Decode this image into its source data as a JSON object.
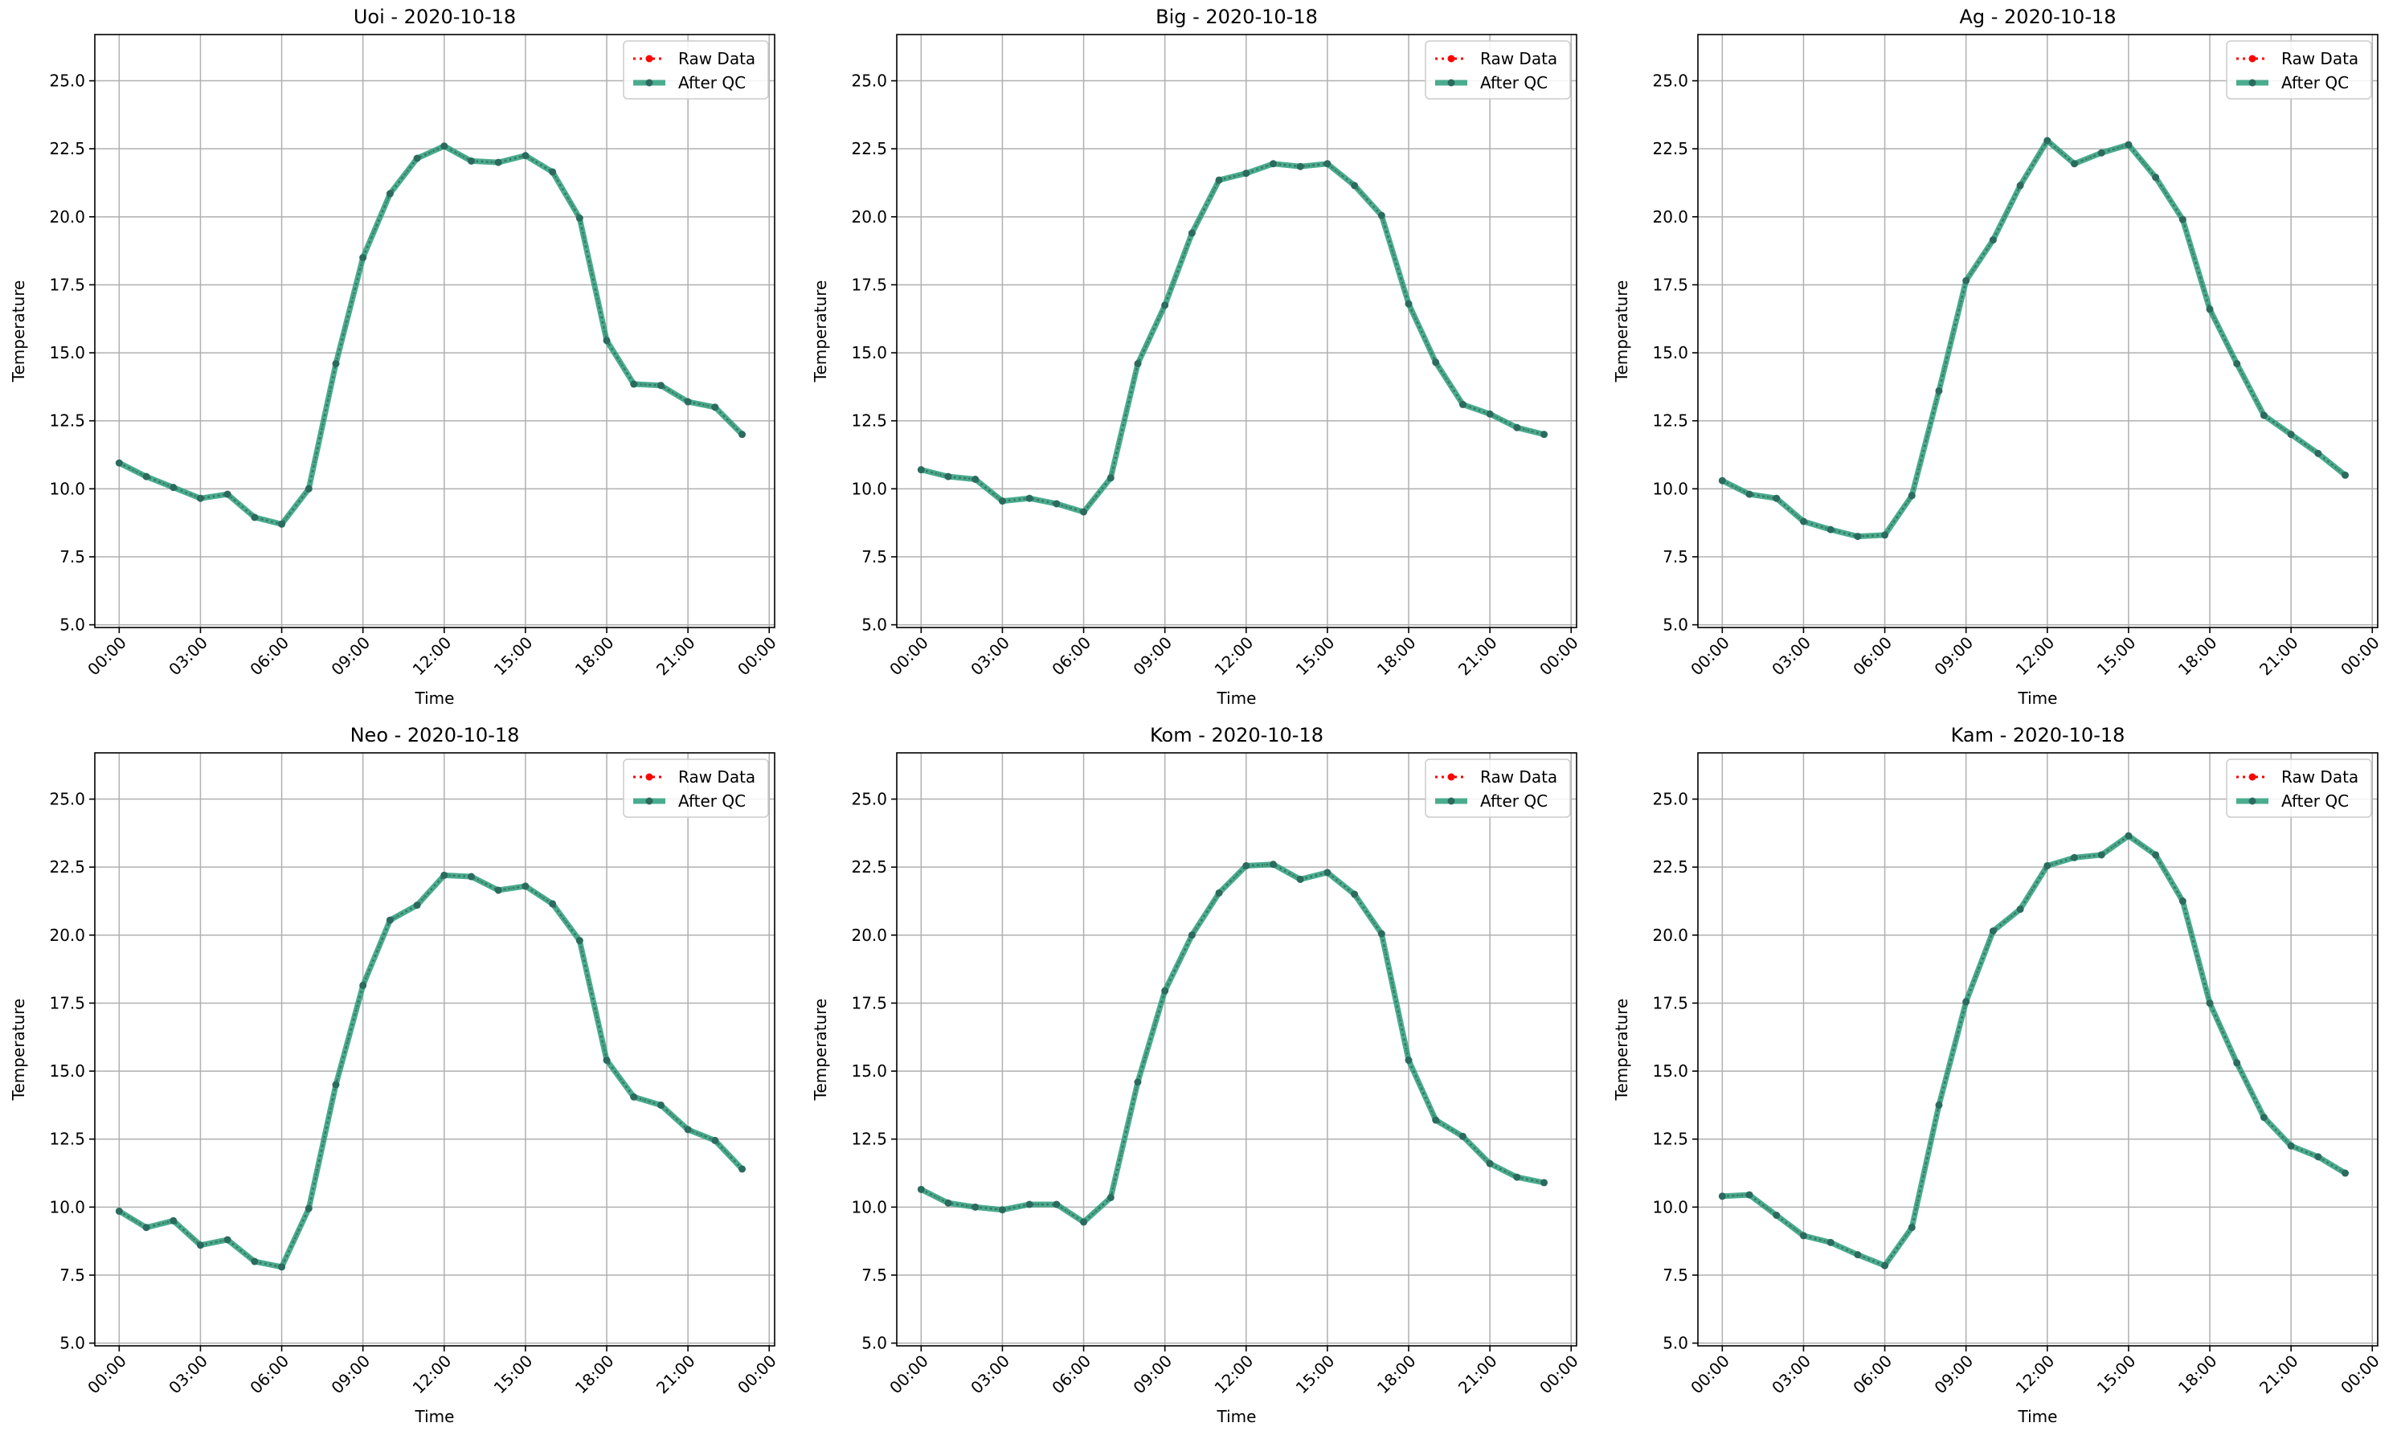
{
  "colors": {
    "raw": "#ff0000",
    "qc": "#2a9d7a",
    "qc_marker": "#2b6b5e",
    "grid": "#b0b0b0",
    "axis": "#000000"
  },
  "chart_data": [
    {
      "type": "line",
      "title": "Uoi - 2020-10-18",
      "xlabel": "Time",
      "ylabel": "Temperature",
      "ylim": [
        4.9,
        26.7
      ],
      "xlim": [
        -0.9,
        24.2
      ],
      "yticks": [
        "5.0",
        "7.5",
        "10.0",
        "12.5",
        "15.0",
        "17.5",
        "20.0",
        "22.5",
        "25.0"
      ],
      "xticks": [
        "00:00",
        "03:00",
        "06:00",
        "09:00",
        "12:00",
        "15:00",
        "18:00",
        "21:00",
        "00:00"
      ],
      "grid": true,
      "legend": "top-right",
      "legend_entries": [
        "Raw Data",
        "After QC"
      ],
      "series": [
        {
          "name": "Raw Data",
          "values": [
            10.95,
            10.45,
            10.05,
            9.65,
            9.8,
            8.95,
            8.7,
            10.0,
            14.6,
            18.5,
            20.85,
            22.15,
            22.6,
            22.05,
            22.0,
            22.25,
            21.65,
            19.95,
            15.45,
            13.85,
            13.8,
            13.2,
            13.0,
            12.0
          ]
        },
        {
          "name": "After QC",
          "values": [
            10.95,
            10.45,
            10.05,
            9.65,
            9.8,
            8.95,
            8.7,
            10.0,
            14.6,
            18.5,
            20.85,
            22.15,
            22.6,
            22.05,
            22.0,
            22.25,
            21.65,
            19.95,
            15.45,
            13.85,
            13.8,
            13.2,
            13.0,
            12.0
          ]
        }
      ]
    },
    {
      "type": "line",
      "title": "Big - 2020-10-18",
      "xlabel": "Time",
      "ylabel": "Temperature",
      "ylim": [
        4.9,
        26.7
      ],
      "xlim": [
        -0.9,
        24.2
      ],
      "yticks": [
        "5.0",
        "7.5",
        "10.0",
        "12.5",
        "15.0",
        "17.5",
        "20.0",
        "22.5",
        "25.0"
      ],
      "xticks": [
        "00:00",
        "03:00",
        "06:00",
        "09:00",
        "12:00",
        "15:00",
        "18:00",
        "21:00",
        "00:00"
      ],
      "grid": true,
      "legend": "top-right",
      "legend_entries": [
        "Raw Data",
        "After QC"
      ],
      "series": [
        {
          "name": "Raw Data",
          "values": [
            10.7,
            10.45,
            10.35,
            9.55,
            9.65,
            9.45,
            9.15,
            10.4,
            14.6,
            16.75,
            19.4,
            21.35,
            21.6,
            21.95,
            21.85,
            21.95,
            21.15,
            20.05,
            16.8,
            14.65,
            13.1,
            12.75,
            12.25,
            12.0
          ]
        },
        {
          "name": "After QC",
          "values": [
            10.7,
            10.45,
            10.35,
            9.55,
            9.65,
            9.45,
            9.15,
            10.4,
            14.6,
            16.75,
            19.4,
            21.35,
            21.6,
            21.95,
            21.85,
            21.95,
            21.15,
            20.05,
            16.8,
            14.65,
            13.1,
            12.75,
            12.25,
            12.0
          ]
        }
      ]
    },
    {
      "type": "line",
      "title": "Ag - 2020-10-18",
      "xlabel": "Time",
      "ylabel": "Temperature",
      "ylim": [
        4.9,
        26.7
      ],
      "xlim": [
        -0.9,
        24.2
      ],
      "yticks": [
        "5.0",
        "7.5",
        "10.0",
        "12.5",
        "15.0",
        "17.5",
        "20.0",
        "22.5",
        "25.0"
      ],
      "xticks": [
        "00:00",
        "03:00",
        "06:00",
        "09:00",
        "12:00",
        "15:00",
        "18:00",
        "21:00",
        "00:00"
      ],
      "grid": true,
      "legend": "top-right",
      "legend_entries": [
        "Raw Data",
        "After QC"
      ],
      "series": [
        {
          "name": "Raw Data",
          "values": [
            10.3,
            9.8,
            9.65,
            8.8,
            8.5,
            8.25,
            8.3,
            9.75,
            13.6,
            17.65,
            19.15,
            21.15,
            22.8,
            21.95,
            22.35,
            22.65,
            21.45,
            19.9,
            16.6,
            14.6,
            12.7,
            12.0,
            11.3,
            10.5
          ]
        },
        {
          "name": "After QC",
          "values": [
            10.3,
            9.8,
            9.65,
            8.8,
            8.5,
            8.25,
            8.3,
            9.75,
            13.6,
            17.65,
            19.15,
            21.15,
            22.8,
            21.95,
            22.35,
            22.65,
            21.45,
            19.9,
            16.6,
            14.6,
            12.7,
            12.0,
            11.3,
            10.5
          ]
        }
      ]
    },
    {
      "type": "line",
      "title": "Neo - 2020-10-18",
      "xlabel": "Time",
      "ylabel": "Temperature",
      "ylim": [
        4.9,
        26.7
      ],
      "xlim": [
        -0.9,
        24.2
      ],
      "yticks": [
        "5.0",
        "7.5",
        "10.0",
        "12.5",
        "15.0",
        "17.5",
        "20.0",
        "22.5",
        "25.0"
      ],
      "xticks": [
        "00:00",
        "03:00",
        "06:00",
        "09:00",
        "12:00",
        "15:00",
        "18:00",
        "21:00",
        "00:00"
      ],
      "grid": true,
      "legend": "top-right",
      "legend_entries": [
        "Raw Data",
        "After QC"
      ],
      "series": [
        {
          "name": "Raw Data",
          "values": [
            9.85,
            9.25,
            9.5,
            8.6,
            8.8,
            8.0,
            7.8,
            9.95,
            14.5,
            18.15,
            20.55,
            21.1,
            22.2,
            22.15,
            21.65,
            21.8,
            21.15,
            19.8,
            15.4,
            14.05,
            13.75,
            12.85,
            12.45,
            11.4
          ]
        },
        {
          "name": "After QC",
          "values": [
            9.85,
            9.25,
            9.5,
            8.6,
            8.8,
            8.0,
            7.8,
            9.95,
            14.5,
            18.15,
            20.55,
            21.1,
            22.2,
            22.15,
            21.65,
            21.8,
            21.15,
            19.8,
            15.4,
            14.05,
            13.75,
            12.85,
            12.45,
            11.4
          ]
        }
      ]
    },
    {
      "type": "line",
      "title": "Kom - 2020-10-18",
      "xlabel": "Time",
      "ylabel": "Temperature",
      "ylim": [
        4.9,
        26.7
      ],
      "xlim": [
        -0.9,
        24.2
      ],
      "yticks": [
        "5.0",
        "7.5",
        "10.0",
        "12.5",
        "15.0",
        "17.5",
        "20.0",
        "22.5",
        "25.0"
      ],
      "xticks": [
        "00:00",
        "03:00",
        "06:00",
        "09:00",
        "12:00",
        "15:00",
        "18:00",
        "21:00",
        "00:00"
      ],
      "grid": true,
      "legend": "top-right",
      "legend_entries": [
        "Raw Data",
        "After QC"
      ],
      "series": [
        {
          "name": "Raw Data",
          "values": [
            10.65,
            10.15,
            10.0,
            9.9,
            10.1,
            10.1,
            9.45,
            10.35,
            14.6,
            17.95,
            20.0,
            21.55,
            22.55,
            22.6,
            22.05,
            22.3,
            21.5,
            20.05,
            15.4,
            13.2,
            12.6,
            11.6,
            11.1,
            10.9
          ]
        },
        {
          "name": "After QC",
          "values": [
            10.65,
            10.15,
            10.0,
            9.9,
            10.1,
            10.1,
            9.45,
            10.35,
            14.6,
            17.95,
            20.0,
            21.55,
            22.55,
            22.6,
            22.05,
            22.3,
            21.5,
            20.05,
            15.4,
            13.2,
            12.6,
            11.6,
            11.1,
            10.9
          ]
        }
      ]
    },
    {
      "type": "line",
      "title": "Kam - 2020-10-18",
      "xlabel": "Time",
      "ylabel": "Temperature",
      "ylim": [
        4.9,
        26.7
      ],
      "xlim": [
        -0.9,
        24.2
      ],
      "yticks": [
        "5.0",
        "7.5",
        "10.0",
        "12.5",
        "15.0",
        "17.5",
        "20.0",
        "22.5",
        "25.0"
      ],
      "xticks": [
        "00:00",
        "03:00",
        "06:00",
        "09:00",
        "12:00",
        "15:00",
        "18:00",
        "21:00",
        "00:00"
      ],
      "grid": true,
      "legend": "top-right",
      "legend_entries": [
        "Raw Data",
        "After QC"
      ],
      "series": [
        {
          "name": "Raw Data",
          "values": [
            10.4,
            10.45,
            9.7,
            8.95,
            8.7,
            8.25,
            7.85,
            9.25,
            13.75,
            17.55,
            20.15,
            20.95,
            22.55,
            22.85,
            22.95,
            23.65,
            22.95,
            21.25,
            17.5,
            15.3,
            13.3,
            12.25,
            11.85,
            11.25
          ]
        },
        {
          "name": "After QC",
          "values": [
            10.4,
            10.45,
            9.7,
            8.95,
            8.7,
            8.25,
            7.85,
            9.25,
            13.75,
            17.55,
            20.15,
            20.95,
            22.55,
            22.85,
            22.95,
            23.65,
            22.95,
            21.25,
            17.5,
            15.3,
            13.3,
            12.25,
            11.85,
            11.25
          ]
        }
      ]
    }
  ]
}
